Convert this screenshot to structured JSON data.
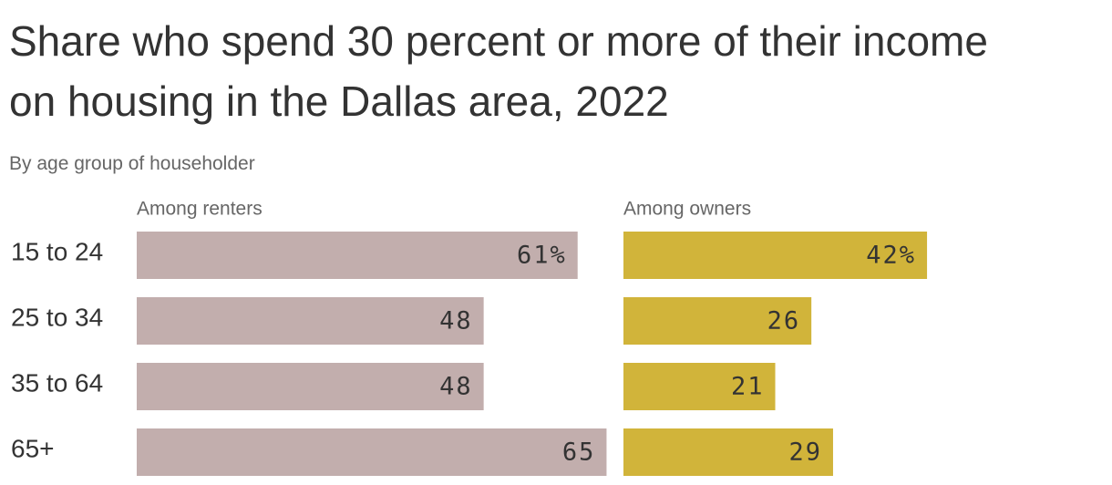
{
  "chart_data": {
    "type": "bar",
    "orientation": "horizontal",
    "title": "Share who spend 30 percent or more of their income on housing in the Dallas area, 2022",
    "subtitle": "By age group of householder",
    "categories": [
      "15 to 24",
      "25 to 34",
      "35 to 64",
      "65+"
    ],
    "series": [
      {
        "name": "Among renters",
        "color": "#c2aead",
        "values": [
          61,
          48,
          48,
          65
        ],
        "value_labels": [
          "61%",
          "48",
          "48",
          "65"
        ]
      },
      {
        "name": "Among owners",
        "color": "#d1b43a",
        "values": [
          42,
          26,
          21,
          29
        ],
        "value_labels": [
          "42%",
          "26",
          "21",
          "29"
        ]
      }
    ]
  }
}
